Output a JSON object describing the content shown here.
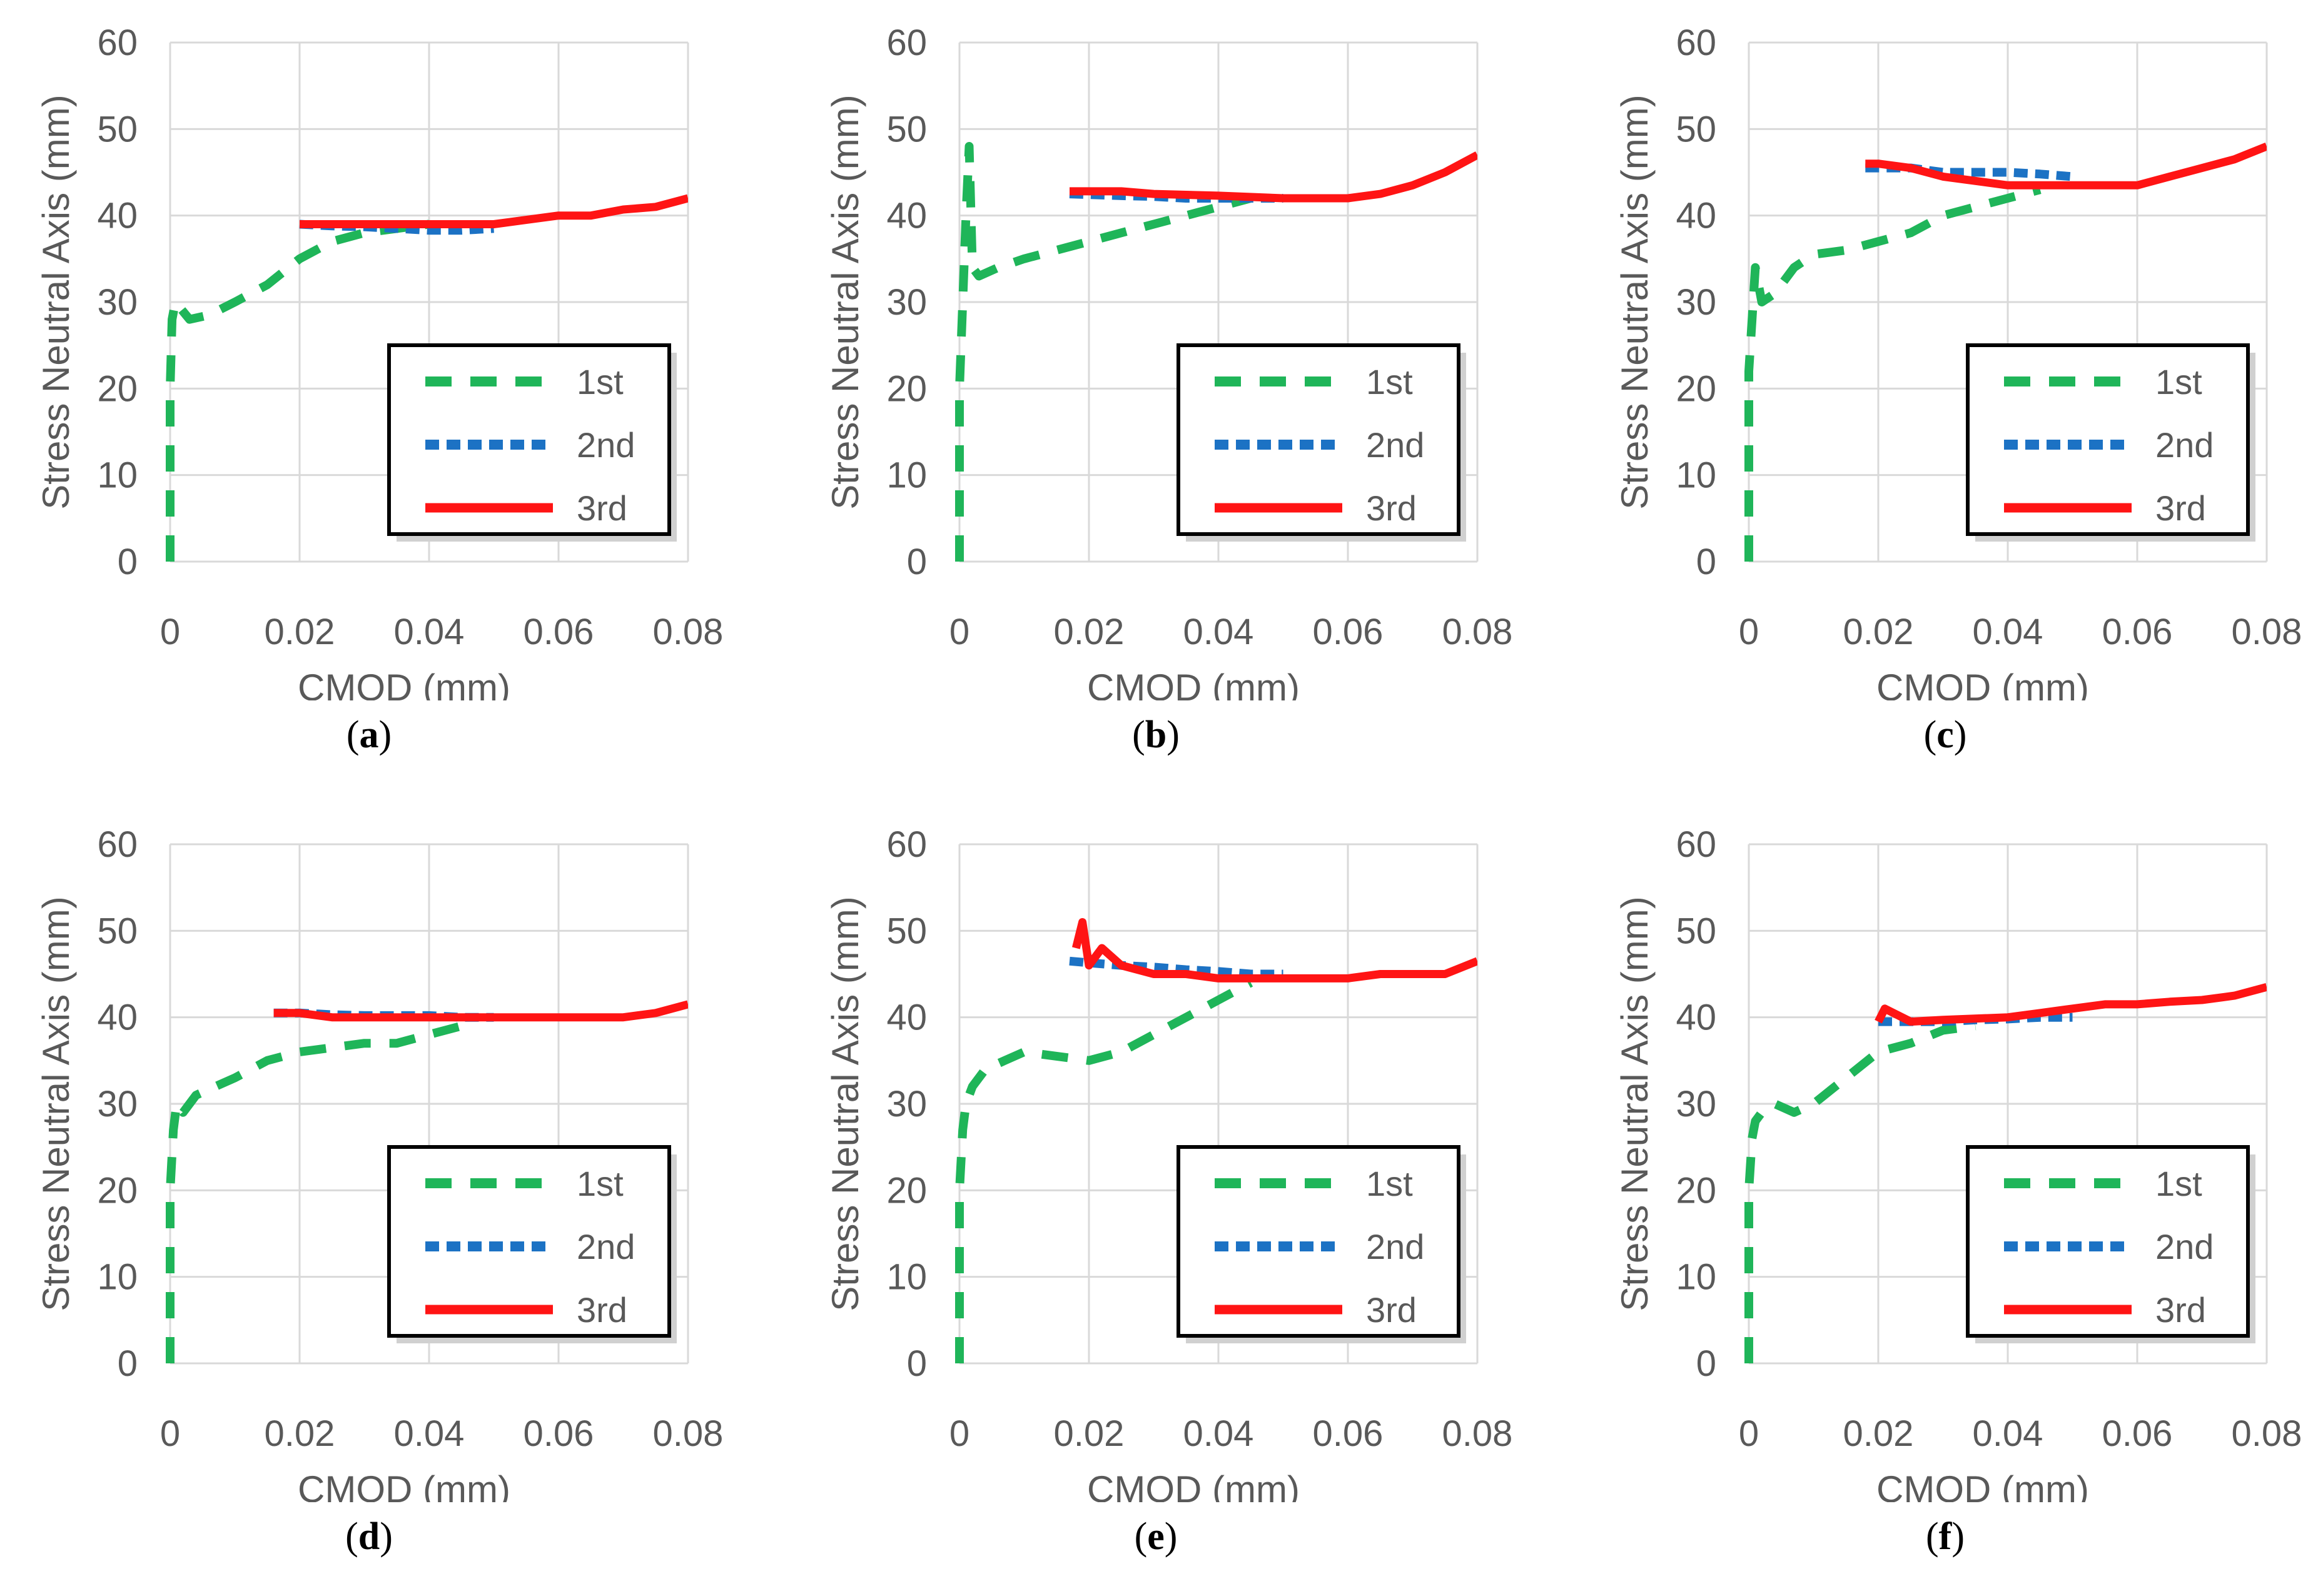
{
  "figure": {
    "colors": {
      "first": "#1fb559",
      "second": "#1c72c4",
      "third": "#ff1414",
      "grid": "#d9d9d9",
      "axis_text": "#595959"
    }
  },
  "chart_data": [
    {
      "type": "line",
      "caption": "a",
      "xlabel": "CMOD (mm)",
      "ylabel": "Stress Neutral Axis (mm)",
      "xlim": [
        0,
        0.08
      ],
      "ylim": [
        0,
        60
      ],
      "xticks": [
        "0",
        "0.02",
        "0.04",
        "0.06",
        "0.08"
      ],
      "yticks": [
        "0",
        "10",
        "20",
        "30",
        "40",
        "50",
        "60"
      ],
      "grid": true,
      "legend": "bottom-right",
      "series": [
        {
          "name": "1st",
          "style": "dash",
          "color": "#1fb559",
          "x": [
            0,
            0,
            0,
            0.0003,
            0.0008,
            0.003,
            0.006,
            0.01,
            0.015,
            0.02,
            0.025,
            0.03,
            0.035,
            0.04
          ],
          "y": [
            0,
            10,
            20,
            28,
            30,
            28,
            28.5,
            30,
            32,
            35,
            37,
            38,
            38.5,
            39
          ]
        },
        {
          "name": "2nd",
          "style": "short-dash",
          "color": "#1c72c4",
          "x": [
            0.02,
            0.025,
            0.03,
            0.035,
            0.04,
            0.045,
            0.05
          ],
          "y": [
            39,
            38.8,
            38.7,
            38.5,
            38.3,
            38.3,
            38.5
          ]
        },
        {
          "name": "3rd",
          "style": "solid",
          "color": "#ff1414",
          "x": [
            0.02,
            0.03,
            0.04,
            0.05,
            0.055,
            0.06,
            0.065,
            0.07,
            0.075,
            0.08
          ],
          "y": [
            39,
            39,
            39,
            39,
            39.5,
            40,
            40,
            40.7,
            41,
            42
          ]
        }
      ]
    },
    {
      "type": "line",
      "caption": "b",
      "xlabel": "CMOD (mm)",
      "ylabel": "Stress Neutral Axis (mm)",
      "xlim": [
        0,
        0.08
      ],
      "ylim": [
        0,
        60
      ],
      "xticks": [
        "0",
        "0.02",
        "0.04",
        "0.06",
        "0.08"
      ],
      "yticks": [
        "0",
        "10",
        "20",
        "30",
        "40",
        "50",
        "60"
      ],
      "grid": true,
      "legend": "bottom-right",
      "series": [
        {
          "name": "1st",
          "style": "dash",
          "color": "#1fb559",
          "x": [
            0,
            0,
            0,
            0.0005,
            0.001,
            0.0015,
            0.002,
            0.003,
            0.006,
            0.01,
            0.015,
            0.02,
            0.025,
            0.03,
            0.035,
            0.04,
            0.045
          ],
          "y": [
            0,
            10,
            20,
            30,
            40,
            48,
            34,
            33,
            34,
            35,
            36,
            37,
            38,
            39,
            40,
            41,
            42
          ]
        },
        {
          "name": "2nd",
          "style": "short-dash",
          "color": "#1c72c4",
          "x": [
            0.017,
            0.025,
            0.03,
            0.035,
            0.04,
            0.045,
            0.05
          ],
          "y": [
            42.5,
            42.3,
            42.2,
            42,
            42,
            42,
            42
          ]
        },
        {
          "name": "3rd",
          "style": "solid",
          "color": "#ff1414",
          "x": [
            0.017,
            0.025,
            0.03,
            0.04,
            0.05,
            0.06,
            0.065,
            0.07,
            0.075,
            0.08
          ],
          "y": [
            42.8,
            42.8,
            42.5,
            42.3,
            42,
            42,
            42.5,
            43.5,
            45,
            47
          ]
        }
      ]
    },
    {
      "type": "line",
      "caption": "c",
      "xlabel": "CMOD (mm)",
      "ylabel": "Stress Neutral Axis (mm)",
      "xlim": [
        0,
        0.08
      ],
      "ylim": [
        0,
        60
      ],
      "xticks": [
        "0",
        "0.02",
        "0.04",
        "0.06",
        "0.08"
      ],
      "yticks": [
        "0",
        "10",
        "20",
        "30",
        "40",
        "50",
        "60"
      ],
      "grid": true,
      "legend": "bottom-right",
      "series": [
        {
          "name": "1st",
          "style": "dash",
          "color": "#1fb559",
          "x": [
            0,
            0,
            0,
            0.0005,
            0.001,
            0.002,
            0.004,
            0.007,
            0.01,
            0.015,
            0.02,
            0.025,
            0.03,
            0.035,
            0.04,
            0.045
          ],
          "y": [
            0,
            12,
            22,
            28,
            34,
            30,
            31,
            34,
            35.5,
            36,
            37,
            38,
            40,
            41,
            42,
            43
          ]
        },
        {
          "name": "2nd",
          "style": "short-dash",
          "color": "#1c72c4",
          "x": [
            0.018,
            0.025,
            0.03,
            0.035,
            0.04,
            0.045,
            0.05
          ],
          "y": [
            45.5,
            45.5,
            45,
            45,
            45,
            44.8,
            44.5
          ]
        },
        {
          "name": "3rd",
          "style": "solid",
          "color": "#ff1414",
          "x": [
            0.018,
            0.02,
            0.025,
            0.03,
            0.035,
            0.04,
            0.05,
            0.06,
            0.065,
            0.07,
            0.075,
            0.08
          ],
          "y": [
            46,
            46,
            45.5,
            44.5,
            44,
            43.5,
            43.5,
            43.5,
            44.5,
            45.5,
            46.5,
            48
          ]
        }
      ]
    },
    {
      "type": "line",
      "caption": "d",
      "xlabel": "CMOD (mm)",
      "ylabel": "Stress Neutral Axis (mm)",
      "xlim": [
        0,
        0.08
      ],
      "ylim": [
        0,
        60
      ],
      "xticks": [
        "0",
        "0.02",
        "0.04",
        "0.06",
        "0.08"
      ],
      "yticks": [
        "0",
        "10",
        "20",
        "30",
        "40",
        "50",
        "60"
      ],
      "grid": true,
      "legend": "bottom-right",
      "series": [
        {
          "name": "1st",
          "style": "dash",
          "color": "#1fb559",
          "x": [
            0,
            0,
            0,
            0.0005,
            0.001,
            0.002,
            0.004,
            0.007,
            0.01,
            0.015,
            0.02,
            0.025,
            0.03,
            0.035,
            0.04,
            0.045
          ],
          "y": [
            0,
            10,
            20,
            27,
            30,
            29,
            31,
            32,
            33,
            35,
            36,
            36.5,
            37,
            37,
            38,
            39
          ]
        },
        {
          "name": "2nd",
          "style": "short-dash",
          "color": "#1c72c4",
          "x": [
            0.016,
            0.02,
            0.025,
            0.03,
            0.035,
            0.04,
            0.045,
            0.05
          ],
          "y": [
            40.5,
            40.5,
            40.3,
            40.2,
            40.2,
            40.2,
            40,
            40
          ]
        },
        {
          "name": "3rd",
          "style": "solid",
          "color": "#ff1414",
          "x": [
            0.016,
            0.02,
            0.025,
            0.03,
            0.04,
            0.05,
            0.06,
            0.07,
            0.075,
            0.08
          ],
          "y": [
            40.5,
            40.5,
            40,
            40,
            40,
            40,
            40,
            40,
            40.5,
            41.5
          ]
        }
      ]
    },
    {
      "type": "line",
      "caption": "e",
      "xlabel": "CMOD (mm)",
      "ylabel": "Stress Neutral Axis (mm)",
      "xlim": [
        0,
        0.08
      ],
      "ylim": [
        0,
        60
      ],
      "xticks": [
        "0",
        "0.02",
        "0.04",
        "0.06",
        "0.08"
      ],
      "yticks": [
        "0",
        "10",
        "20",
        "30",
        "40",
        "50",
        "60"
      ],
      "grid": true,
      "legend": "bottom-right",
      "series": [
        {
          "name": "1st",
          "style": "dash",
          "color": "#1fb559",
          "x": [
            0,
            0,
            0,
            0.0005,
            0.001,
            0.002,
            0.004,
            0.007,
            0.01,
            0.015,
            0.02,
            0.025,
            0.03,
            0.035,
            0.04,
            0.045
          ],
          "y": [
            0,
            10,
            20,
            27,
            30,
            32,
            34,
            35,
            36,
            35.5,
            35,
            36,
            38,
            40,
            42,
            44
          ]
        },
        {
          "name": "2nd",
          "style": "short-dash",
          "color": "#1c72c4",
          "x": [
            0.017,
            0.02,
            0.025,
            0.03,
            0.035,
            0.04,
            0.045,
            0.05
          ],
          "y": [
            46.5,
            46.3,
            46,
            45.8,
            45.5,
            45.3,
            45,
            45
          ]
        },
        {
          "name": "3rd",
          "style": "solid",
          "color": "#ff1414",
          "x": [
            0.018,
            0.019,
            0.02,
            0.022,
            0.025,
            0.03,
            0.035,
            0.04,
            0.05,
            0.06,
            0.065,
            0.07,
            0.075,
            0.08
          ],
          "y": [
            48,
            51,
            46,
            48,
            46,
            45,
            45,
            44.5,
            44.5,
            44.5,
            45,
            45,
            45,
            46.5
          ]
        }
      ]
    },
    {
      "type": "line",
      "caption": "f",
      "xlabel": "CMOD (mm)",
      "ylabel": "Stress Neutral Axis (mm)",
      "xlim": [
        0,
        0.08
      ],
      "ylim": [
        0,
        60
      ],
      "xticks": [
        "0",
        "0.02",
        "0.04",
        "0.06",
        "0.08"
      ],
      "yticks": [
        "0",
        "10",
        "20",
        "30",
        "40",
        "50",
        "60"
      ],
      "grid": true,
      "legend": "bottom-right",
      "series": [
        {
          "name": "1st",
          "style": "dash",
          "color": "#1fb559",
          "x": [
            0,
            0,
            0,
            0.0005,
            0.001,
            0.002,
            0.004,
            0.007,
            0.01,
            0.015,
            0.02,
            0.025,
            0.03,
            0.035
          ],
          "y": [
            0,
            10,
            20,
            26,
            28,
            29,
            30,
            29,
            30,
            33,
            36,
            37,
            38.5,
            39
          ]
        },
        {
          "name": "2nd",
          "style": "short-dash",
          "color": "#1c72c4",
          "x": [
            0.02,
            0.025,
            0.03,
            0.035,
            0.04,
            0.045,
            0.05
          ],
          "y": [
            39.5,
            39.5,
            39.5,
            39.7,
            39.8,
            40,
            40
          ]
        },
        {
          "name": "3rd",
          "style": "solid",
          "color": "#ff1414",
          "x": [
            0.02,
            0.021,
            0.025,
            0.03,
            0.04,
            0.045,
            0.05,
            0.055,
            0.06,
            0.065,
            0.07,
            0.075,
            0.08
          ],
          "y": [
            39.5,
            41,
            39.5,
            39.7,
            40,
            40.5,
            41,
            41.5,
            41.5,
            41.8,
            42,
            42.5,
            43.5
          ]
        }
      ]
    }
  ]
}
